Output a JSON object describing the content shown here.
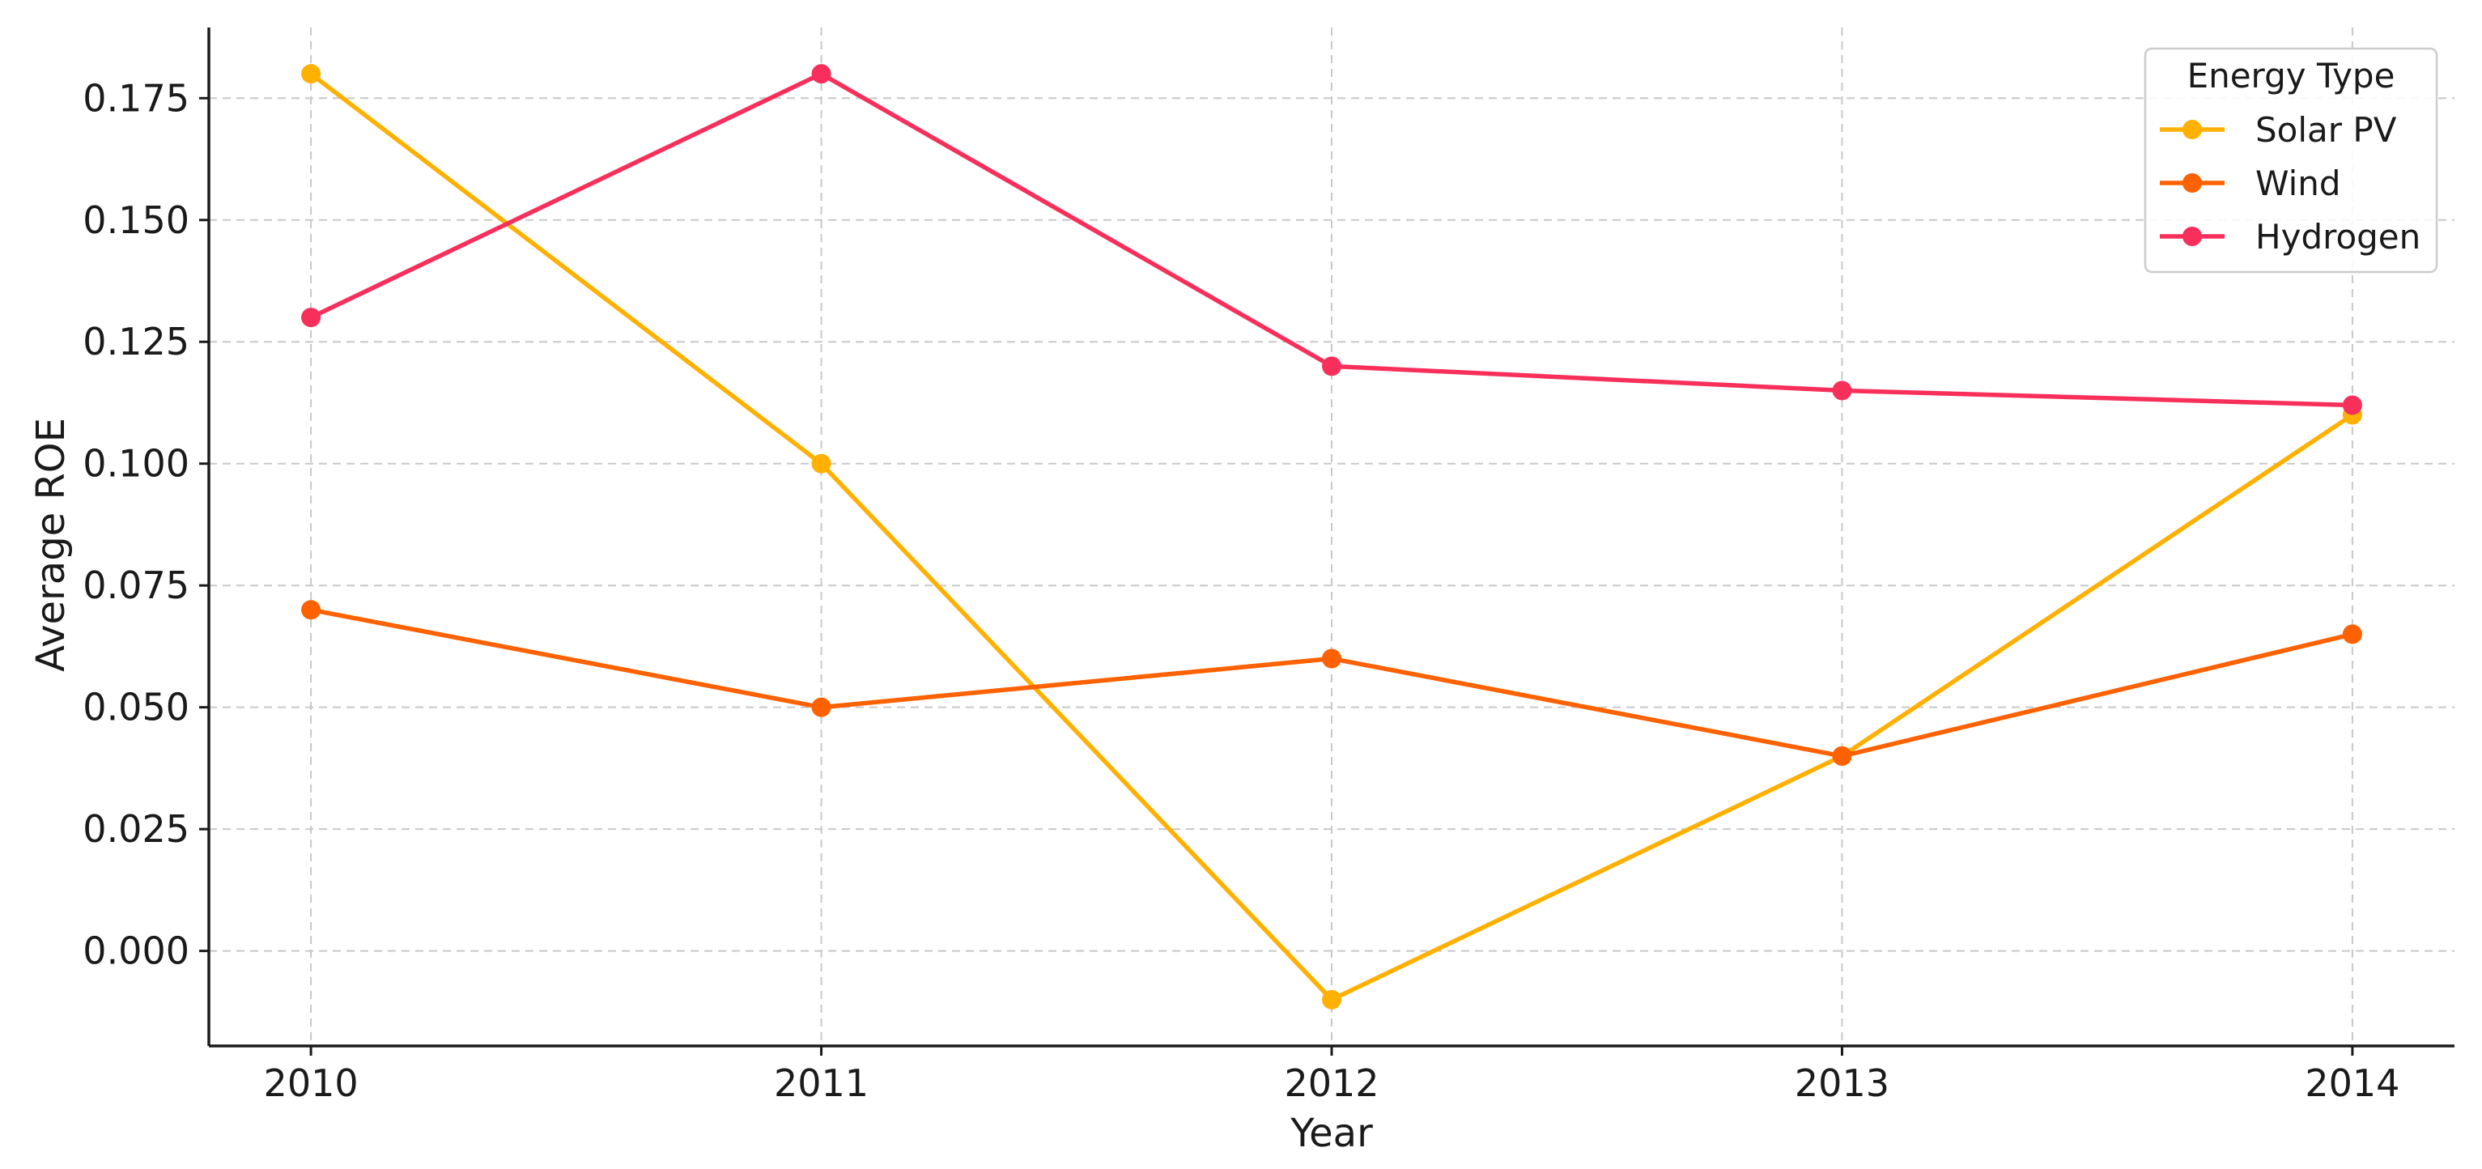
{
  "chart_data": {
    "type": "line",
    "title": "",
    "xlabel": "Year",
    "ylabel": "Average ROE",
    "x": [
      2010,
      2011,
      2012,
      2013,
      2014
    ],
    "x_tick_labels": [
      "2010",
      "2011",
      "2012",
      "2013",
      "2014"
    ],
    "y_tick_values": [
      0.0,
      0.025,
      0.05,
      0.075,
      0.1,
      0.125,
      0.15,
      0.175
    ],
    "y_tick_labels": [
      "0.000",
      "0.025",
      "0.050",
      "0.075",
      "0.100",
      "0.125",
      "0.150",
      "0.175"
    ],
    "xlim": [
      2009.8,
      2014.2
    ],
    "ylim": [
      -0.0195,
      0.1895
    ],
    "grid": true,
    "legend": {
      "title": "Energy Type",
      "position": "top-right"
    },
    "series": [
      {
        "name": "Solar PV",
        "color": "#FFB000",
        "values": [
          0.18,
          0.1,
          -0.01,
          0.04,
          0.11
        ]
      },
      {
        "name": "Wind",
        "color": "#FE6100",
        "values": [
          0.07,
          0.05,
          0.06,
          0.04,
          0.065
        ]
      },
      {
        "name": "Hydrogen",
        "color": "#F72F5A",
        "values": [
          0.13,
          0.18,
          0.12,
          0.115,
          0.112
        ]
      }
    ]
  }
}
